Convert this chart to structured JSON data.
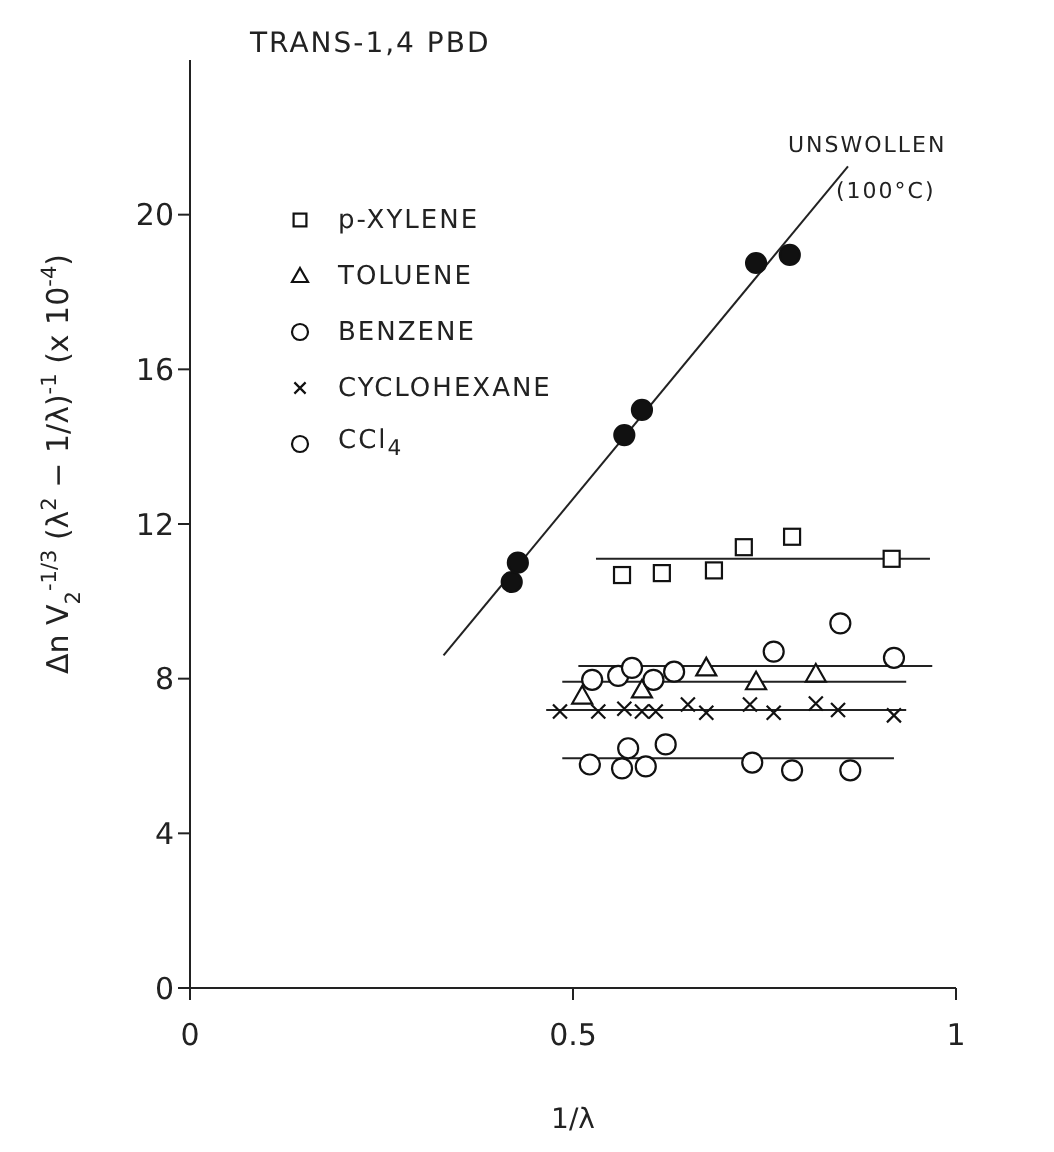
{
  "chart_data": {
    "type": "scatter",
    "title": "TRANS-1,4 PBD",
    "xlabel": "1/λ",
    "ylabel": "Δn V$_{2}$$^{-1/3}$ (λ$^{2}$ − 1/λ)$^{-1}$   (x 10$^{-4}$)",
    "xlim": [
      0,
      1
    ],
    "xticks": [
      0,
      0.5,
      1
    ],
    "ylim": [
      0,
      24
    ],
    "yticks": [
      0,
      4,
      8,
      12,
      16,
      20
    ],
    "legend": "top left",
    "annotations": [
      "UNSWOLLEN",
      "(100°C)"
    ],
    "series": [
      {
        "marker": "circle",
        "color": "#111111",
        "x": [
          0.42,
          0.428,
          0.567,
          0.59,
          0.739,
          0.783
        ],
        "values": [
          10.5,
          11.0,
          14.3,
          14.95,
          18.75,
          18.96
        ]
      },
      {
        "type": "line",
        "color": "#222222",
        "x": [
          0.331,
          0.859
        ],
        "values": [
          8.6,
          21.25
        ]
      },
      {
        "name": "p-XYLENE",
        "marker": "square",
        "color": "#111111",
        "x": [
          0.564,
          0.616,
          0.684,
          0.723,
          0.786,
          0.916
        ],
        "values": [
          10.68,
          10.73,
          10.8,
          11.4,
          11.67,
          11.1
        ]
      },
      {
        "type": "line",
        "color": "#222222",
        "x": [
          0.53,
          0.966
        ],
        "values": [
          11.1,
          11.1
        ]
      },
      {
        "name": "TOLUENE",
        "marker": "triangle",
        "color": "#111111",
        "x": [
          0.512,
          0.59,
          0.674,
          0.739,
          0.817
        ],
        "values": [
          7.55,
          7.71,
          8.28,
          7.92,
          8.12
        ]
      },
      {
        "type": "line",
        "color": "#222222",
        "x": [
          0.486,
          0.935
        ],
        "values": [
          7.92,
          7.92
        ]
      },
      {
        "name": "BENZENE",
        "marker": "circle",
        "color": "#111111",
        "x": [
          0.525,
          0.559,
          0.577,
          0.605,
          0.632,
          0.762,
          0.849,
          0.919
        ],
        "values": [
          7.97,
          8.07,
          8.28,
          7.97,
          8.18,
          8.7,
          9.43,
          8.54
        ]
      },
      {
        "type": "line",
        "color": "#222222",
        "x": [
          0.507,
          0.969
        ],
        "values": [
          8.33,
          8.33
        ]
      },
      {
        "name": "CYCLOHEXANE",
        "marker": "cross",
        "color": "#111111",
        "x": [
          0.483,
          0.533,
          0.567,
          0.59,
          0.608,
          0.65,
          0.674,
          0.731,
          0.762,
          0.817,
          0.846,
          0.919
        ],
        "values": [
          7.15,
          7.15,
          7.22,
          7.15,
          7.15,
          7.33,
          7.12,
          7.33,
          7.12,
          7.36,
          7.19,
          7.05
        ]
      },
      {
        "type": "line",
        "color": "#222222",
        "x": [
          0.465,
          0.935
        ],
        "values": [
          7.19,
          7.19
        ]
      },
      {
        "name": "CCl$_{4}$",
        "marker": "circle",
        "color": "#111111",
        "x": [
          0.522,
          0.564,
          0.572,
          0.595,
          0.621,
          0.734,
          0.786,
          0.862
        ],
        "values": [
          5.78,
          5.68,
          6.2,
          5.73,
          6.3,
          5.83,
          5.63,
          5.63
        ]
      },
      {
        "type": "line",
        "color": "#222222",
        "x": [
          0.486,
          0.919
        ],
        "values": [
          5.94,
          5.94
        ]
      }
    ]
  }
}
